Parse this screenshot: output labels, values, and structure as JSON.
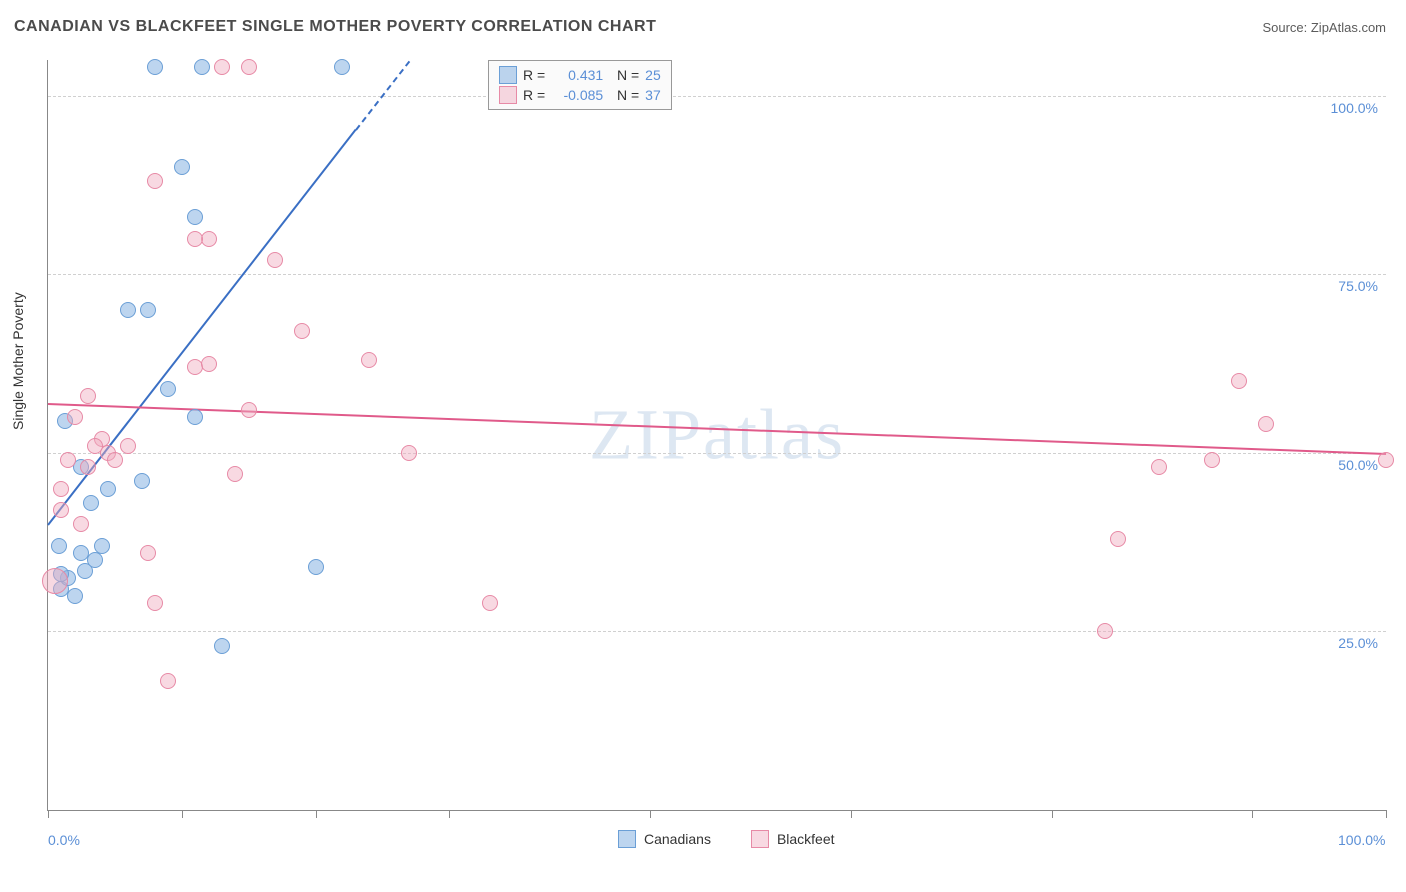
{
  "header": {
    "title": "CANADIAN VS BLACKFEET SINGLE MOTHER POVERTY CORRELATION CHART",
    "source": "Source: ZipAtlas.com"
  },
  "watermark": "ZIPatlas",
  "chart": {
    "type": "scatter",
    "ylabel": "Single Mother Poverty",
    "xlim": [
      0,
      100
    ],
    "ylim": [
      0,
      105
    ],
    "xtick_positions": [
      0,
      10,
      20,
      30,
      45,
      60,
      75,
      90,
      100
    ],
    "xtick_labels": {
      "0": "0.0%",
      "100": "100.0%"
    },
    "grid_y": [
      25,
      50,
      75,
      100
    ],
    "ytick_labels": {
      "25": "25.0%",
      "50": "50.0%",
      "75": "75.0%",
      "100": "100.0%"
    },
    "background_color": "#ffffff",
    "grid_color": "#d0d0d0",
    "axis_color": "#888888",
    "label_color": "#5b8fd6",
    "series": [
      {
        "name": "Canadians",
        "fill": "rgba(135, 179, 226, 0.55)",
        "stroke": "#6b9fd6",
        "line_color": "#3a6fc4",
        "R": "0.431",
        "N": "25",
        "trend": {
          "x1": 0,
          "y1": 40,
          "x2": 27,
          "y2": 105,
          "dash_after_x": 23
        },
        "points": [
          {
            "x": 1,
            "y": 31
          },
          {
            "x": 1.5,
            "y": 32.5
          },
          {
            "x": 2,
            "y": 30
          },
          {
            "x": 2.5,
            "y": 36
          },
          {
            "x": 2.8,
            "y": 33.5
          },
          {
            "x": 3.5,
            "y": 35
          },
          {
            "x": 4,
            "y": 37
          },
          {
            "x": 3.2,
            "y": 43
          },
          {
            "x": 4.5,
            "y": 45
          },
          {
            "x": 7,
            "y": 46
          },
          {
            "x": 6,
            "y": 70
          },
          {
            "x": 7.5,
            "y": 70
          },
          {
            "x": 9,
            "y": 59
          },
          {
            "x": 11,
            "y": 55
          },
          {
            "x": 10,
            "y": 90
          },
          {
            "x": 11,
            "y": 83
          },
          {
            "x": 8,
            "y": 104
          },
          {
            "x": 11.5,
            "y": 104
          },
          {
            "x": 22,
            "y": 104
          },
          {
            "x": 13,
            "y": 23
          },
          {
            "x": 20,
            "y": 34
          },
          {
            "x": 2.5,
            "y": 48
          },
          {
            "x": 1.3,
            "y": 54.5
          },
          {
            "x": 0.8,
            "y": 37
          },
          {
            "x": 1,
            "y": 33
          }
        ]
      },
      {
        "name": "Blackfeet",
        "fill": "rgba(240, 170, 190, 0.45)",
        "stroke": "#e78aa6",
        "line_color": "#e05a8a",
        "R": "-0.085",
        "N": "37",
        "trend": {
          "x1": 0,
          "y1": 57,
          "x2": 100,
          "y2": 50
        },
        "points": [
          {
            "x": 0.5,
            "y": 32,
            "big": true
          },
          {
            "x": 1,
            "y": 42
          },
          {
            "x": 1.5,
            "y": 49
          },
          {
            "x": 7.5,
            "y": 36
          },
          {
            "x": 2,
            "y": 55
          },
          {
            "x": 2.5,
            "y": 40
          },
          {
            "x": 3,
            "y": 48
          },
          {
            "x": 8,
            "y": 29
          },
          {
            "x": 9,
            "y": 18
          },
          {
            "x": 11,
            "y": 62
          },
          {
            "x": 12,
            "y": 62.5
          },
          {
            "x": 14,
            "y": 47
          },
          {
            "x": 15,
            "y": 56
          },
          {
            "x": 17,
            "y": 77
          },
          {
            "x": 19,
            "y": 67
          },
          {
            "x": 24,
            "y": 63
          },
          {
            "x": 8,
            "y": 88
          },
          {
            "x": 12,
            "y": 80
          },
          {
            "x": 13,
            "y": 104
          },
          {
            "x": 15,
            "y": 104
          },
          {
            "x": 27,
            "y": 50
          },
          {
            "x": 33,
            "y": 29
          },
          {
            "x": 79,
            "y": 25
          },
          {
            "x": 80,
            "y": 38
          },
          {
            "x": 83,
            "y": 48
          },
          {
            "x": 87,
            "y": 49
          },
          {
            "x": 89,
            "y": 60
          },
          {
            "x": 91,
            "y": 54
          },
          {
            "x": 100,
            "y": 49
          },
          {
            "x": 1,
            "y": 45
          },
          {
            "x": 4.5,
            "y": 50
          },
          {
            "x": 4,
            "y": 52
          },
          {
            "x": 3,
            "y": 58
          },
          {
            "x": 5,
            "y": 49
          },
          {
            "x": 3.5,
            "y": 51
          },
          {
            "x": 11,
            "y": 80
          },
          {
            "x": 6,
            "y": 51
          }
        ]
      }
    ],
    "legend_bottom": [
      {
        "label": "Canadians",
        "fill": "rgba(135, 179, 226, 0.55)",
        "stroke": "#6b9fd6"
      },
      {
        "label": "Blackfeet",
        "fill": "rgba(240, 170, 190, 0.45)",
        "stroke": "#e78aa6"
      }
    ]
  }
}
